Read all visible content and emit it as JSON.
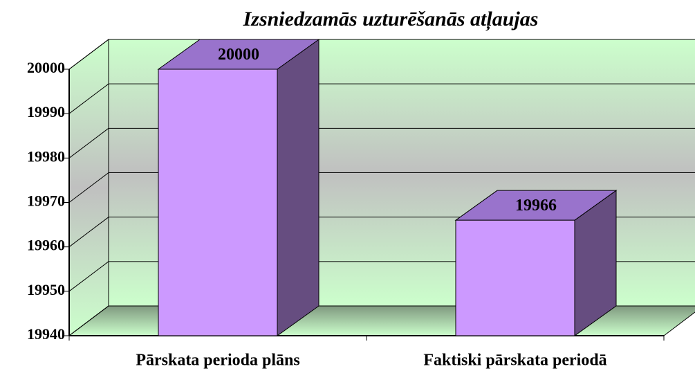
{
  "chart_data": {
    "type": "bar",
    "title": "Izsniedzamās uzturēšanās atļaujas",
    "categories": [
      "Pārskata perioda plāns",
      "Faktiski pārskata periodā"
    ],
    "values": [
      20000,
      19966
    ],
    "color": "#cc99ff",
    "ylim": [
      19940,
      20000
    ],
    "yticks": [
      19940,
      19950,
      19960,
      19970,
      19980,
      19990,
      20000
    ],
    "grid": true
  }
}
